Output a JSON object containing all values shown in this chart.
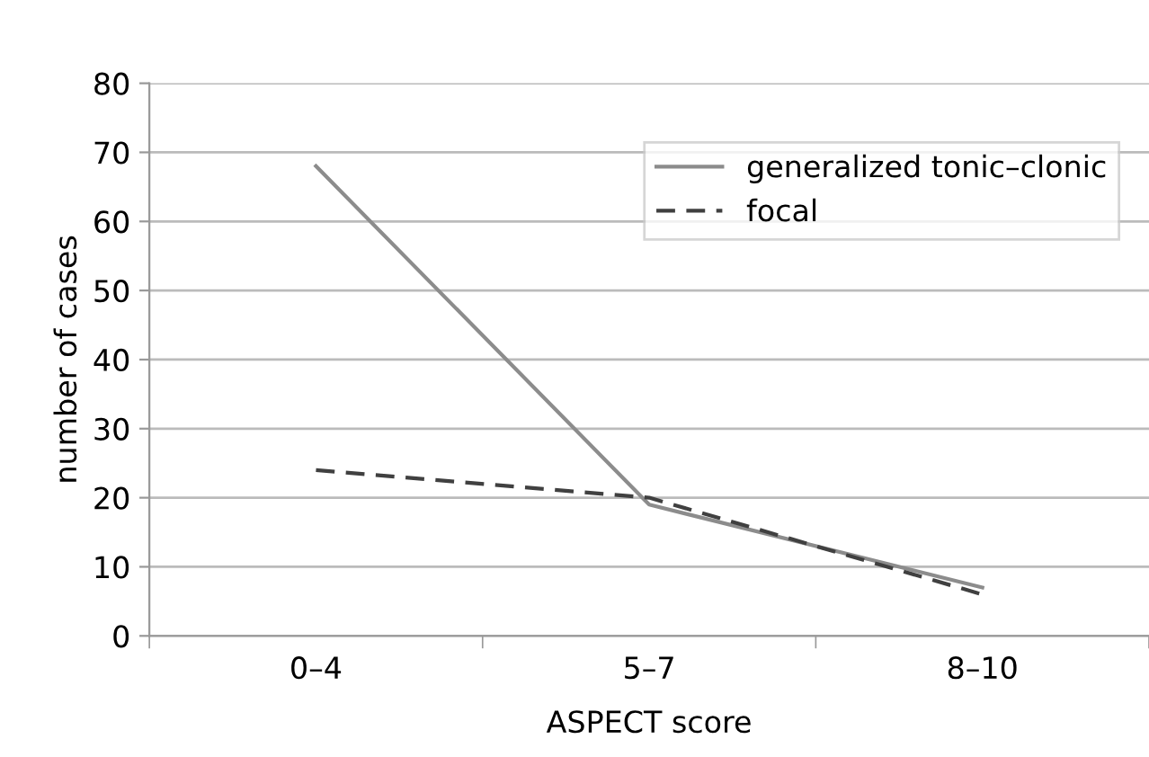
{
  "chart_data": {
    "type": "line",
    "xlabel": "ASPECT score",
    "ylabel": "number of cases",
    "categories": [
      "0–4",
      "5–7",
      "8–10"
    ],
    "series": [
      {
        "name": "generalized tonic–clonic",
        "color": "#8c8c8c",
        "values": [
          68,
          19,
          7
        ],
        "line_style": "solid"
      },
      {
        "name": "focal",
        "color": "#404040",
        "values": [
          24,
          20,
          6
        ],
        "line_style": "dashed"
      }
    ],
    "ylim": [
      0,
      80
    ],
    "yticks": [
      0,
      10,
      20,
      30,
      40,
      50,
      60,
      70,
      80
    ],
    "grid": "y",
    "legend": "top right",
    "marker": "none"
  }
}
